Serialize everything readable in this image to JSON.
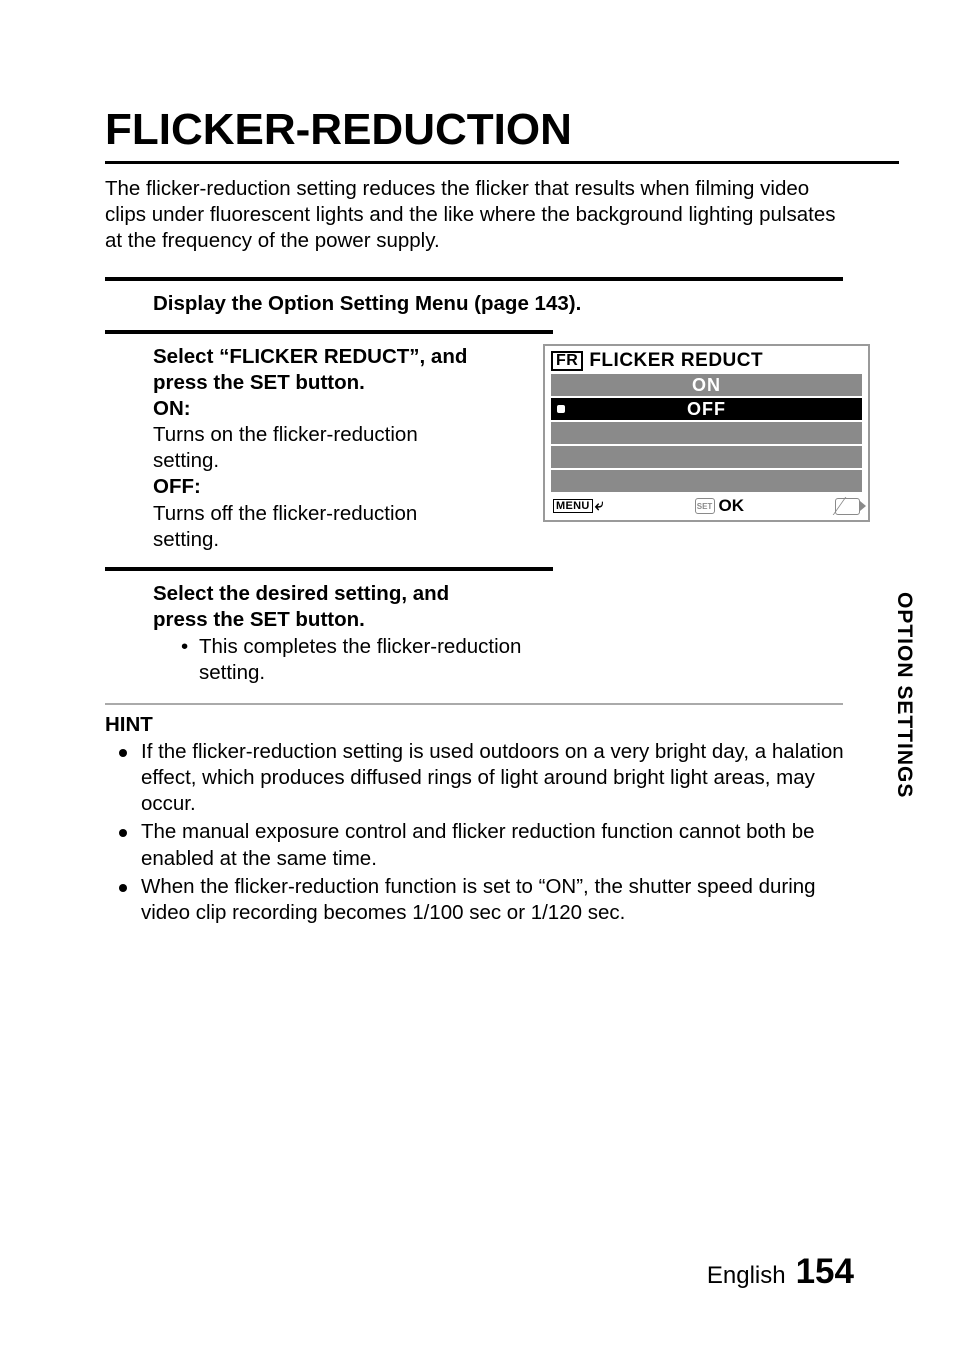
{
  "title": "FLICKER-REDUCTION",
  "intro": "The flicker-reduction setting reduces the flicker that results when filming video clips under fluorescent lights and the like where the background lighting pulsates at the frequency of the power supply.",
  "step1": {
    "lead": "Display the Option Setting Menu (page 143)."
  },
  "step2": {
    "lead1": "Select “FLICKER REDUCT”, and",
    "lead2": "press the SET button.",
    "on_label": "ON:",
    "on_desc1": "Turns on the flicker-reduction",
    "on_desc2": "setting.",
    "off_label": "OFF:",
    "off_desc1": "Turns off the flicker-reduction",
    "off_desc2": "setting."
  },
  "lcd": {
    "badge": "FR",
    "title": "FLICKER REDUCT",
    "row_on": "ON",
    "row_off": "OFF",
    "menu": "MENU",
    "set": "SET",
    "ok": "OK"
  },
  "step3": {
    "lead1": "Select the desired setting, and",
    "lead2": "press the SET button.",
    "bullet1a": "This completes the flicker-reduction",
    "bullet1b": "setting."
  },
  "hint": {
    "title": "HINT",
    "items": [
      "If the flicker-reduction setting is used outdoors on a very bright day, a halation effect, which produces diffused rings of light around bright light areas, may occur.",
      "The manual exposure control and flicker reduction function cannot both be enabled at the same time.",
      "When the flicker-reduction function is set to “ON”, the shutter speed during video clip recording becomes 1/100 sec or 1/120 sec."
    ]
  },
  "side_tab": "OPTION SETTINGS",
  "footer": {
    "lang": "English",
    "page": "154"
  }
}
